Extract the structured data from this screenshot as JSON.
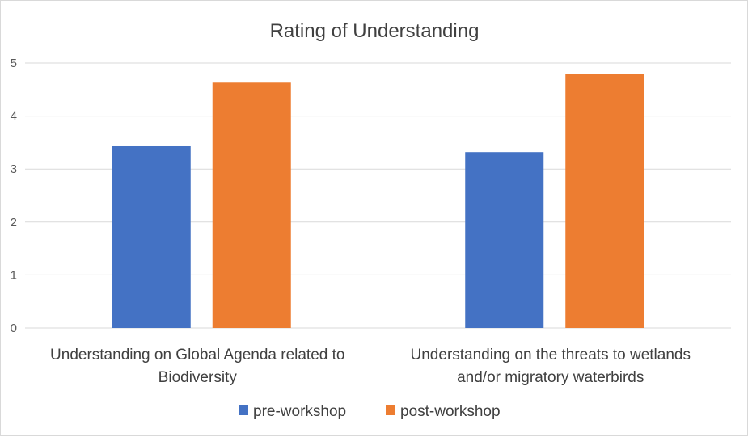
{
  "chart_data": {
    "type": "bar",
    "title": "Rating of Understanding",
    "xlabel": "",
    "ylabel": "",
    "ylim": [
      0,
      5
    ],
    "yticks": [
      0,
      1,
      2,
      3,
      4,
      5
    ],
    "grid": true,
    "legend_position": "bottom",
    "categories": [
      [
        "Understanding on Global Agenda related to",
        "Biodiversity"
      ],
      [
        "Understanding on the threats to wetlands",
        "and/or migratory waterbirds"
      ]
    ],
    "series": [
      {
        "name": "pre-workshop",
        "color": "#4472C4",
        "values": [
          3.43,
          3.32
        ]
      },
      {
        "name": "post-workshop",
        "color": "#ED7D31",
        "values": [
          4.63,
          4.79
        ]
      }
    ]
  }
}
